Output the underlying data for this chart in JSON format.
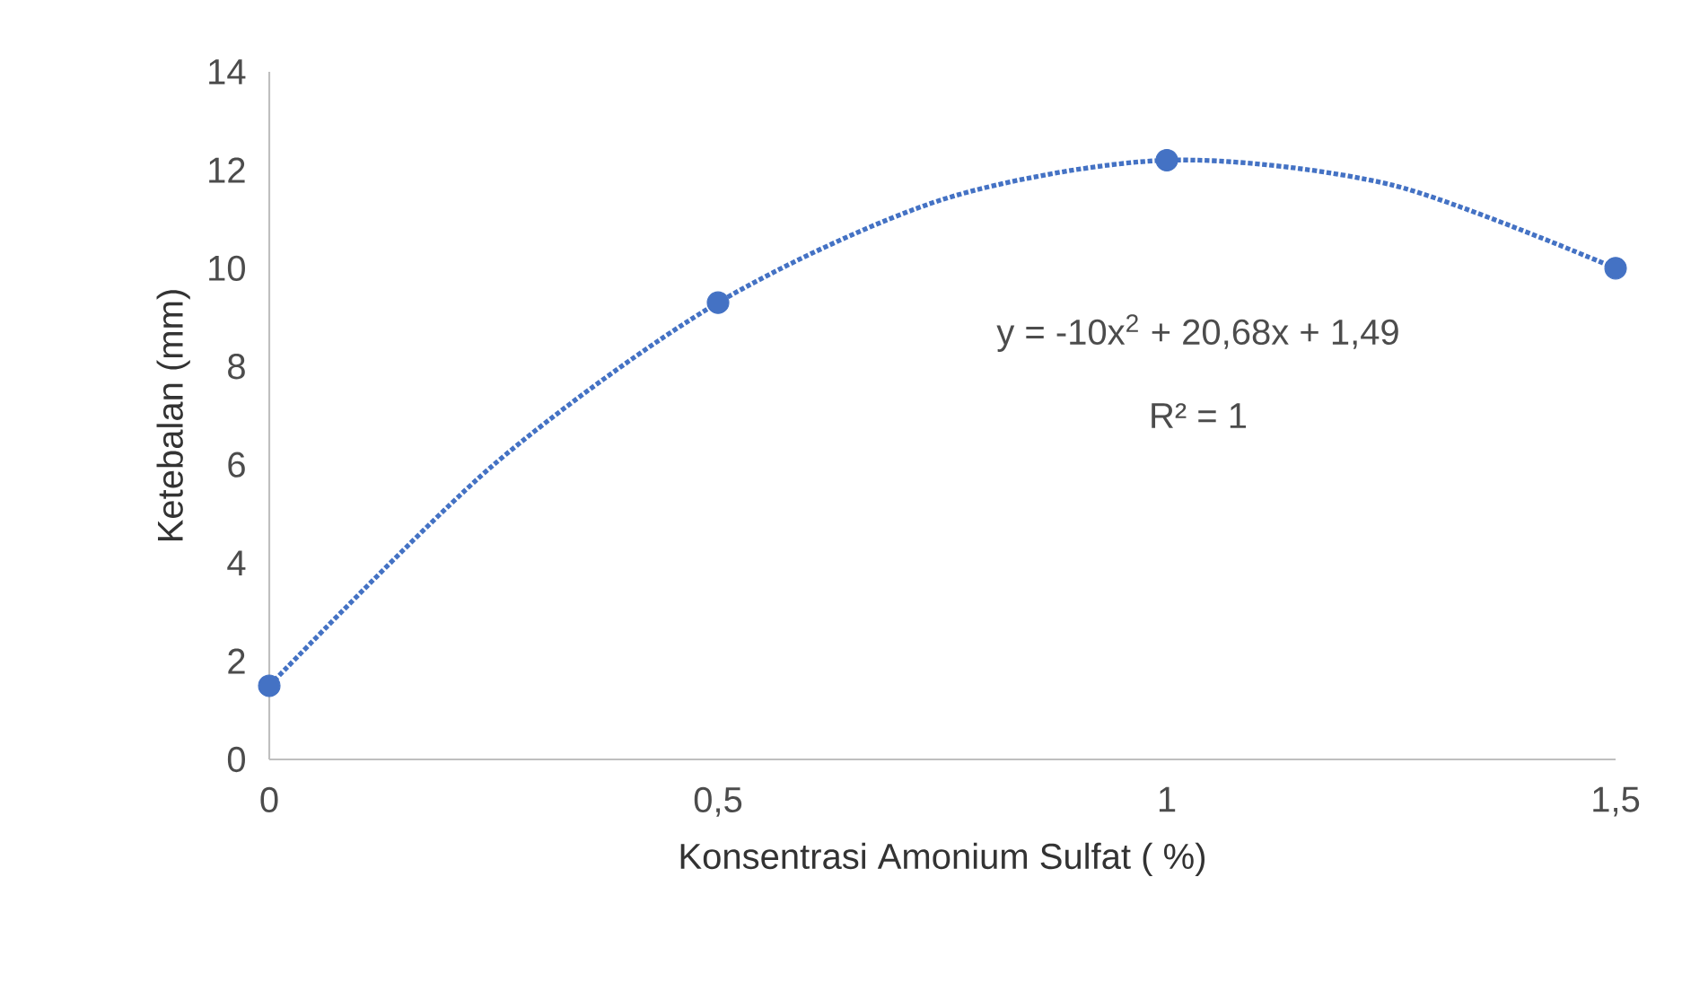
{
  "chart_data": {
    "type": "scatter",
    "xlabel": "Konsentrasi Amonium Sulfat ( %)",
    "ylabel": "Ketebalan (mm)",
    "xlim": [
      0,
      1.5
    ],
    "xticks": [
      0,
      {
        "value": 0.5,
        "label": "0,5"
      },
      1,
      {
        "value": 1.5,
        "label": "1,5"
      }
    ],
    "ylim": [
      0,
      14
    ],
    "yticks": [
      0,
      2,
      4,
      6,
      8,
      10,
      12,
      14
    ],
    "series": [
      {
        "color": "#4472c4",
        "marker": "circle",
        "x": [
          0,
          0.5,
          1,
          1.5
        ],
        "values": [
          1.5,
          9.3,
          12.2,
          10.0
        ]
      },
      {
        "type": "line",
        "color": "#4472c4",
        "marker": "none",
        "line_style": "dotted",
        "x": [
          0,
          0.25,
          0.5,
          0.75,
          1,
          1.25,
          1.5
        ],
        "values": [
          1.5,
          6.0,
          9.3,
          11.4,
          12.2,
          11.7,
          10.0
        ]
      }
    ],
    "annotations": [
      "y = -10x$^{2}$ + 20,68x + 1,49",
      "R² = 1"
    ],
    "grid": false
  }
}
